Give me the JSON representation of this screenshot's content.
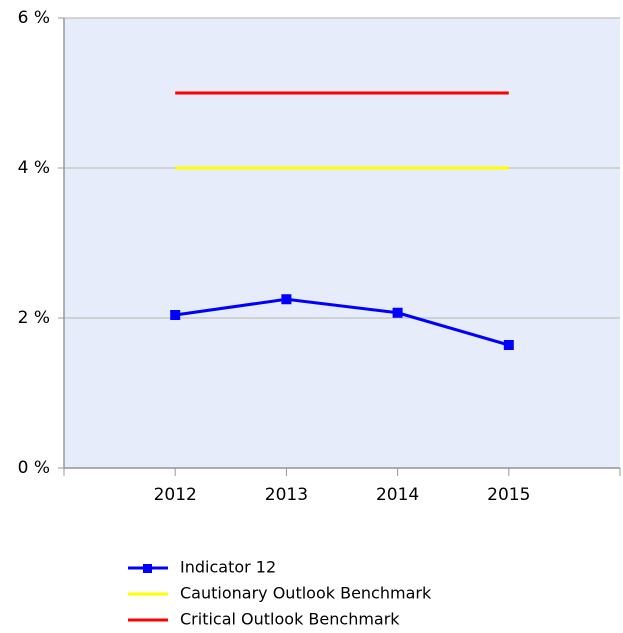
{
  "chart_data": {
    "type": "line",
    "x": [
      "2012",
      "2013",
      "2014",
      "2015"
    ],
    "series": [
      {
        "name": "Indicator 12",
        "color": "#0000ff",
        "marker": "square",
        "values": [
          2.04,
          2.25,
          2.07,
          1.64
        ]
      },
      {
        "name": "Cautionary Outlook Benchmark",
        "color": "#ffff00",
        "values": [
          4,
          4,
          4,
          4
        ]
      },
      {
        "name": "Critical Outlook Benchmark",
        "color": "#ff0000",
        "values": [
          5,
          5,
          5,
          5
        ]
      }
    ],
    "ylim": [
      0,
      6
    ],
    "yticks": [
      {
        "value": 0,
        "label": "0 %"
      },
      {
        "value": 2,
        "label": "2 %"
      },
      {
        "value": 4,
        "label": "4 %"
      },
      {
        "value": 6,
        "label": "6 %"
      }
    ],
    "grid": true,
    "plot_background": "#e6ecfa",
    "legend": "bottom"
  }
}
